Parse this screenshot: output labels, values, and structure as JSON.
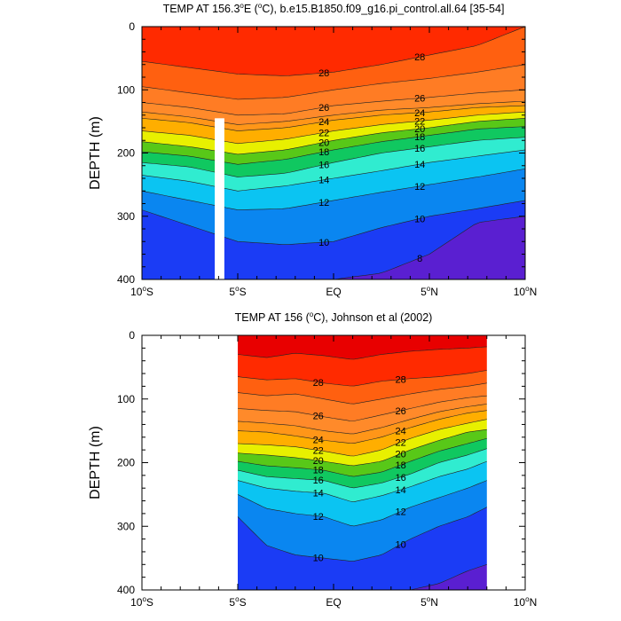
{
  "chart_data": [
    {
      "type": "contour",
      "title": "TEMP AT 156.3°E (°C), b.e15.B1850.f09_g16.pi_control.all.64 [35-54]",
      "title_parts": [
        "TEMP AT 156.3",
        "o",
        "E (",
        "o",
        "C), b.e15.B1850.f09_g16.pi_control.all.64 [35-54]"
      ],
      "ylabel": "DEPTH (m)",
      "xlim": [
        -10,
        10
      ],
      "ylim": [
        400,
        0
      ],
      "yticks": [
        0,
        100,
        200,
        300,
        400
      ],
      "xticks": [
        {
          "value": -10,
          "label": "10",
          "sup": "o",
          "suffix": "S"
        },
        {
          "value": -5,
          "label": "5",
          "sup": "o",
          "suffix": "S"
        },
        {
          "value": 0,
          "label": "EQ",
          "sup": "",
          "suffix": ""
        },
        {
          "value": 5,
          "label": "5",
          "sup": "o",
          "suffix": "N"
        },
        {
          "value": 10,
          "label": "10",
          "sup": "o",
          "suffix": "N"
        }
      ],
      "contour_interval": 1,
      "contour_labels": [
        28,
        26,
        24,
        22,
        20,
        18,
        16,
        14,
        12,
        10,
        8
      ],
      "data_extent": [
        -10,
        10
      ],
      "missing_strip": [
        -6.2,
        -5.7
      ],
      "isotherm_depths": {
        "x": [
          -10,
          -7.5,
          -5,
          -2.5,
          0,
          2.5,
          5,
          7.5,
          10
        ],
        "levels": [
          {
            "t": 29,
            "depth": [
              0,
              0,
              0,
              0,
              0,
              0,
              0,
              0,
              0
            ]
          },
          {
            "t": 28,
            "depth": [
              55,
              65,
              75,
              78,
              72,
              60,
              45,
              30,
              0
            ]
          },
          {
            "t": 27,
            "depth": [
              95,
              105,
              115,
              112,
              100,
              90,
              82,
              72,
              60
            ]
          },
          {
            "t": 26,
            "depth": [
              120,
              128,
              140,
              138,
              125,
              118,
              112,
              105,
              100
            ]
          },
          {
            "t": 25,
            "depth": [
              135,
              143,
              155,
              150,
              140,
              132,
              128,
              122,
              118
            ]
          },
          {
            "t": 24,
            "depth": [
              145,
              152,
              165,
              160,
              148,
              140,
              135,
              128,
              125
            ]
          },
          {
            "t": 22,
            "depth": [
              165,
              172,
              185,
              178,
              165,
              155,
              148,
              140,
              135
            ]
          },
          {
            "t": 20,
            "depth": [
              182,
              190,
              202,
              195,
              180,
              168,
              160,
              150,
              145
            ]
          },
          {
            "t": 18,
            "depth": [
              198,
              205,
              218,
              210,
              195,
              182,
              172,
              162,
              158
            ]
          },
          {
            "t": 16,
            "depth": [
              215,
              222,
              238,
              232,
              215,
              200,
              190,
              180,
              175
            ]
          },
          {
            "t": 14,
            "depth": [
              235,
              245,
              260,
              252,
              240,
              228,
              215,
              205,
              195
            ]
          },
          {
            "t": 12,
            "depth": [
              260,
              275,
              290,
              288,
              275,
              262,
              250,
              238,
              225
            ]
          },
          {
            "t": 10,
            "depth": [
              290,
              315,
              340,
              345,
              340,
              318,
              300,
              288,
              275
            ]
          },
          {
            "t": 8,
            "depth": [
              400,
              400,
              400,
              400,
              400,
              390,
              360,
              310,
              300
            ]
          }
        ]
      }
    },
    {
      "type": "contour",
      "title": "TEMP AT 156 (°C), Johnson et al (2002)",
      "title_parts": [
        "TEMP AT 156 (",
        "o",
        "C), Johnson et al (2002)"
      ],
      "ylabel": "DEPTH (m)",
      "xlim": [
        -10,
        10
      ],
      "ylim": [
        400,
        0
      ],
      "yticks": [
        0,
        100,
        200,
        300,
        400
      ],
      "xticks": [
        {
          "value": -10,
          "label": "10",
          "sup": "o",
          "suffix": "S"
        },
        {
          "value": -5,
          "label": "5",
          "sup": "o",
          "suffix": "S"
        },
        {
          "value": 0,
          "label": "EQ",
          "sup": "",
          "suffix": ""
        },
        {
          "value": 5,
          "label": "5",
          "sup": "o",
          "suffix": "N"
        },
        {
          "value": 10,
          "label": "10",
          "sup": "o",
          "suffix": "N"
        }
      ],
      "contour_interval": 1,
      "contour_labels": [
        28,
        26,
        24,
        22,
        20,
        18,
        16,
        14,
        12,
        10
      ],
      "data_extent": [
        -5,
        8
      ],
      "isotherm_depths": {
        "x": [
          -5,
          -3.5,
          -2,
          -0.5,
          1,
          2.5,
          4,
          5.5,
          7,
          8
        ],
        "levels": [
          {
            "t": 30,
            "depth": [
              0,
              0,
              0,
              0,
              0,
              0,
              0,
              0,
              0,
              0
            ]
          },
          {
            "t": 29,
            "depth": [
              30,
              35,
              28,
              32,
              38,
              30,
              25,
              22,
              20,
              18
            ]
          },
          {
            "t": 28,
            "depth": [
              65,
              70,
              68,
              75,
              80,
              72,
              68,
              65,
              60,
              55
            ]
          },
          {
            "t": 27,
            "depth": [
              90,
              95,
              92,
              100,
              108,
              100,
              92,
              85,
              80,
              75
            ]
          },
          {
            "t": 26,
            "depth": [
              115,
              118,
              120,
              128,
              135,
              125,
              115,
              105,
              98,
              95
            ]
          },
          {
            "t": 25,
            "depth": [
              135,
              138,
              142,
              150,
              155,
              145,
              132,
              120,
              112,
              108
            ]
          },
          {
            "t": 24,
            "depth": [
              150,
              152,
              158,
              165,
              170,
              160,
              145,
              132,
              122,
              118
            ]
          },
          {
            "t": 22,
            "depth": [
              170,
              172,
              175,
              182,
              190,
              180,
              162,
              148,
              138,
              132
            ]
          },
          {
            "t": 20,
            "depth": [
              185,
              188,
              192,
              198,
              205,
              198,
              180,
              165,
              152,
              148
            ]
          },
          {
            "t": 18,
            "depth": [
              198,
              205,
              208,
              212,
              222,
              215,
              198,
              182,
              170,
              162
            ]
          },
          {
            "t": 16,
            "depth": [
              212,
              222,
              225,
              228,
              240,
              232,
              218,
              200,
              188,
              178
            ]
          },
          {
            "t": 14,
            "depth": [
              228,
              240,
              245,
              248,
              262,
              252,
              238,
              222,
              210,
              198
            ]
          },
          {
            "t": 12,
            "depth": [
              250,
              272,
              280,
              285,
              300,
              290,
              270,
              255,
              240,
              228
            ]
          },
          {
            "t": 10,
            "depth": [
              285,
              330,
              345,
              350,
              355,
              345,
              320,
              300,
              285,
              270
            ]
          },
          {
            "t": 8,
            "depth": [
              400,
              400,
              400,
              400,
              400,
              400,
              400,
              390,
              370,
              360
            ]
          }
        ]
      }
    }
  ]
}
